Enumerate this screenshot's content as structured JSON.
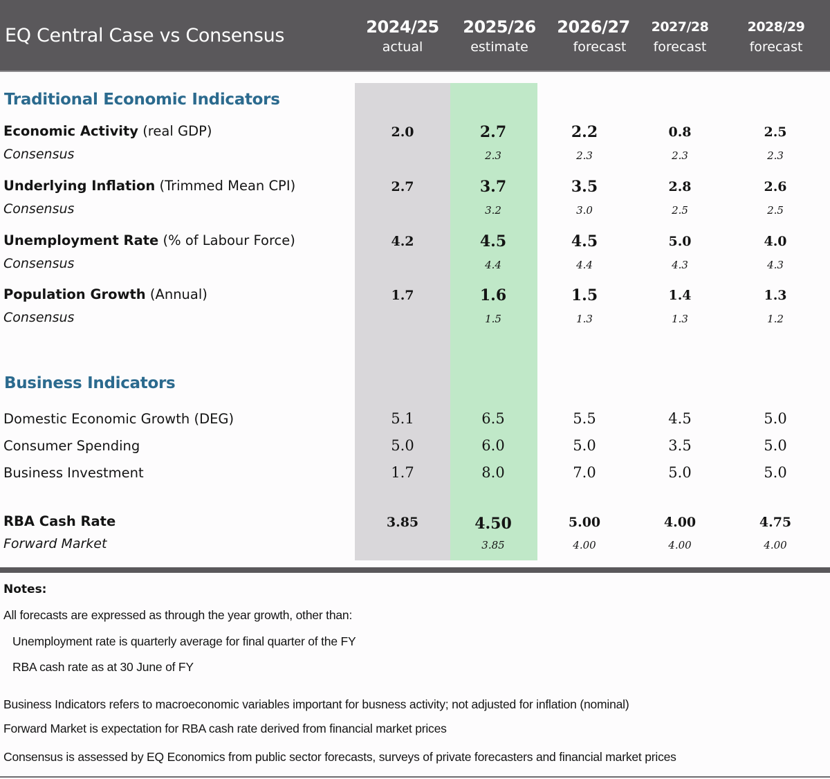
{
  "header": {
    "title": "EQ Central Case  vs Consensus",
    "columns": [
      {
        "year": "2024/25",
        "kind": "actual"
      },
      {
        "year": "2025/26",
        "kind": "estimate"
      },
      {
        "year": "2026/27",
        "kind": "forecast"
      },
      {
        "year": "2027/28",
        "kind": "forecast"
      },
      {
        "year": "2028/29",
        "kind": "forecast"
      }
    ]
  },
  "colors": {
    "header_bg": "#5a585b",
    "actual_band": "#d9d7da",
    "estimate_band": "#c0e8c8",
    "section_title": "#2b6a8e"
  },
  "traditional": {
    "title": "Traditional Economic Indicators",
    "rows": [
      {
        "name_bold": "Economic Activity",
        "name_note": " (real GDP)",
        "sub_label": "Consensus",
        "values": [
          "2.0",
          "2.7",
          "2.2",
          "0.8",
          "2.5"
        ],
        "consensus": [
          "",
          "2.3",
          "2.3",
          "2.3",
          "2.3"
        ]
      },
      {
        "name_bold": "Underlying Inflation",
        "name_note": " (Trimmed Mean CPI)",
        "sub_label": "Consensus",
        "values": [
          "2.7",
          "3.7",
          "3.5",
          "2.8",
          "2.6"
        ],
        "consensus": [
          "",
          "3.2",
          "3.0",
          "2.5",
          "2.5"
        ]
      },
      {
        "name_bold": "Unemployment Rate",
        "name_note": " (% of Labour Force)",
        "sub_label": "Consensus",
        "values": [
          "4.2",
          "4.5",
          "4.5",
          "5.0",
          "4.0"
        ],
        "consensus": [
          "",
          "4.4",
          "4.4",
          "4.3",
          "4.3"
        ]
      },
      {
        "name_bold": "Population Growth",
        "name_note": " (Annual)",
        "sub_label": "Consensus",
        "values": [
          "1.7",
          "1.6",
          "1.5",
          "1.4",
          "1.3"
        ],
        "consensus": [
          "",
          "1.5",
          "1.3",
          "1.3",
          "1.2"
        ]
      }
    ]
  },
  "business": {
    "title": "Business Indicators",
    "rows": [
      {
        "name": "Domestic Economic Growth (DEG)",
        "values": [
          "5.1",
          "6.5",
          "5.5",
          "4.5",
          "5.0"
        ]
      },
      {
        "name": "Consumer Spending",
        "values": [
          "5.0",
          "6.0",
          "5.0",
          "3.5",
          "5.0"
        ]
      },
      {
        "name": "Business Investment",
        "values": [
          "1.7",
          "8.0",
          "7.0",
          "5.0",
          "5.0"
        ]
      }
    ]
  },
  "cash_rate": {
    "name": "RBA Cash Rate",
    "sub_label": "Forward Market",
    "values": [
      "3.85",
      "4.50",
      "5.00",
      "4.00",
      "4.75"
    ],
    "forward": [
      "",
      "3.85",
      "4.00",
      "4.00",
      "4.00"
    ]
  },
  "notes": {
    "title": "Notes:",
    "lines": [
      "All forecasts are expressed as through the year growth, other than:",
      "Unemployment rate is quarterly average for final quarter of the FY",
      "RBA cash rate as at 30 June of FY",
      "Business Indicators refers to macroeconomic variables important for busness activity; not adjusted for inflation (nominal)",
      "Forward Market is expectation for RBA cash rate  derived from financial market prices",
      "Consensus is assessed by EQ Economics from public sector forecasts, surveys of private forecasters and financial market prices"
    ]
  }
}
